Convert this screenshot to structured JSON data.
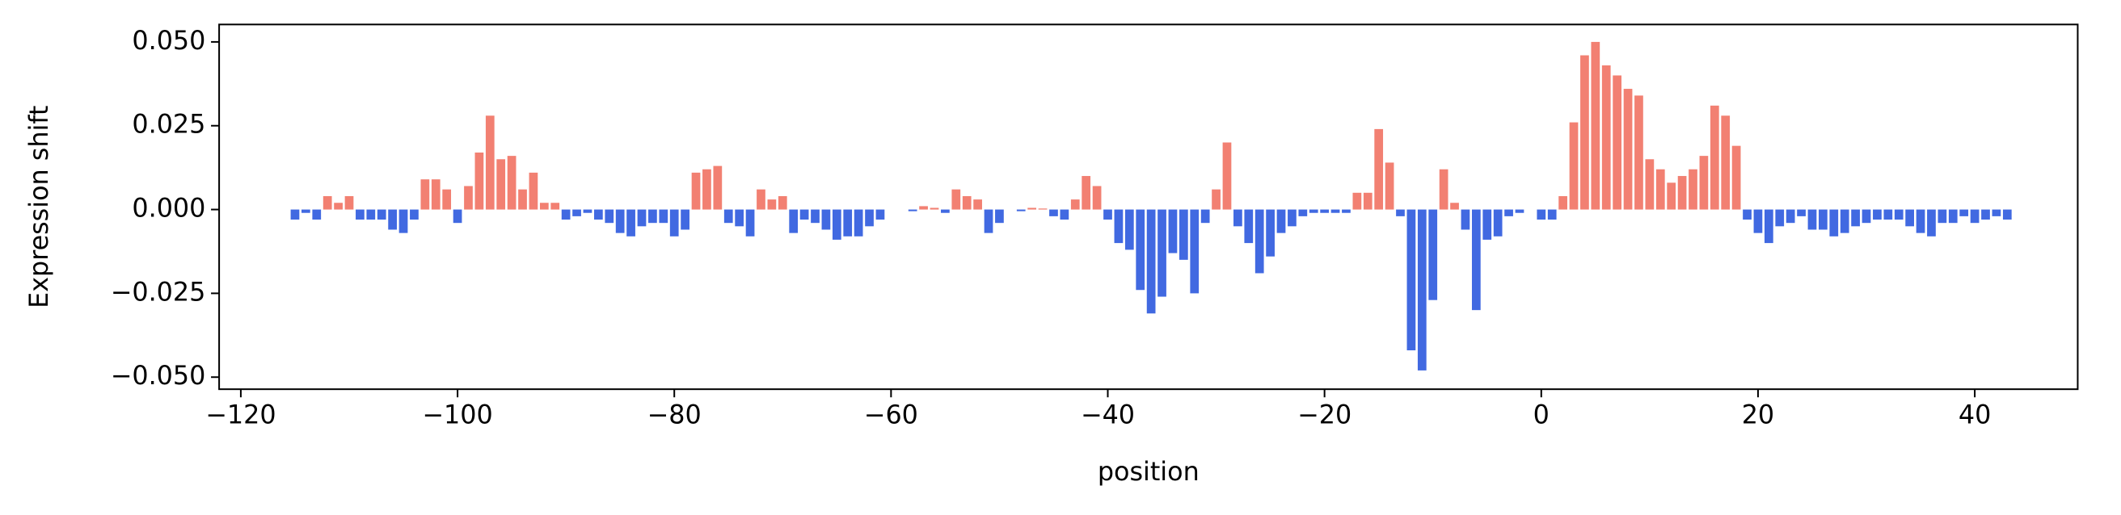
{
  "chart_data": {
    "type": "bar",
    "x_label": "position",
    "y_label": "Expression shift",
    "positive_color": "#f28072",
    "negative_color": "#4169e1",
    "x": [
      -115,
      -114,
      -113,
      -112,
      -111,
      -110,
      -109,
      -108,
      -107,
      -106,
      -105,
      -104,
      -103,
      -102,
      -101,
      -100,
      -99,
      -98,
      -97,
      -96,
      -95,
      -94,
      -93,
      -92,
      -91,
      -90,
      -89,
      -88,
      -87,
      -86,
      -85,
      -84,
      -83,
      -82,
      -81,
      -80,
      -79,
      -78,
      -77,
      -76,
      -75,
      -74,
      -73,
      -72,
      -71,
      -70,
      -69,
      -68,
      -67,
      -66,
      -65,
      -64,
      -63,
      -62,
      -61,
      -60,
      -59,
      -58,
      -57,
      -56,
      -55,
      -54,
      -53,
      -52,
      -51,
      -50,
      -49,
      -48,
      -47,
      -46,
      -45,
      -44,
      -43,
      -42,
      -41,
      -40,
      -39,
      -38,
      -37,
      -36,
      -35,
      -34,
      -33,
      -32,
      -31,
      -30,
      -29,
      -28,
      -27,
      -26,
      -25,
      -24,
      -23,
      -22,
      -21,
      -20,
      -19,
      -18,
      -17,
      -16,
      -15,
      -14,
      -13,
      -12,
      -11,
      -10,
      -9,
      -8,
      -7,
      -6,
      -5,
      -4,
      -3,
      -2,
      -1,
      0,
      1,
      2,
      3,
      4,
      5,
      6,
      7,
      8,
      9,
      10,
      11,
      12,
      13,
      14,
      15,
      16,
      17,
      18,
      19,
      20,
      21,
      22,
      23,
      24,
      25,
      26,
      27,
      28,
      29,
      30,
      31,
      32,
      33,
      34,
      35,
      36,
      37,
      38,
      39,
      40,
      41,
      42,
      43
    ],
    "values": [
      -0.003,
      -0.001,
      -0.003,
      0.004,
      0.002,
      0.004,
      -0.003,
      -0.003,
      -0.003,
      -0.006,
      -0.007,
      -0.003,
      0.009,
      0.009,
      0.006,
      -0.004,
      0.007,
      0.017,
      0.028,
      0.015,
      0.016,
      0.006,
      0.011,
      0.002,
      0.002,
      -0.003,
      -0.002,
      -0.001,
      -0.003,
      -0.004,
      -0.007,
      -0.008,
      -0.005,
      -0.004,
      -0.004,
      -0.008,
      -0.006,
      0.011,
      0.012,
      0.013,
      -0.004,
      -0.005,
      -0.008,
      0.006,
      0.003,
      0.004,
      -0.007,
      -0.003,
      -0.004,
      -0.006,
      -0.009,
      -0.008,
      -0.008,
      -0.005,
      -0.003,
      0,
      0,
      -0.0005,
      0.001,
      0.0005,
      -0.001,
      0.006,
      0.004,
      0.003,
      -0.007,
      -0.004,
      0,
      -0.0005,
      0.0005,
      0.0003,
      -0.002,
      -0.003,
      0.003,
      0.01,
      0.007,
      -0.003,
      -0.01,
      -0.012,
      -0.024,
      -0.031,
      -0.026,
      -0.013,
      -0.015,
      -0.025,
      -0.004,
      0.006,
      0.02,
      -0.005,
      -0.01,
      -0.019,
      -0.014,
      -0.007,
      -0.005,
      -0.002,
      -0.001,
      -0.001,
      -0.001,
      -0.001,
      0.005,
      0.005,
      0.024,
      0.014,
      -0.002,
      -0.042,
      -0.048,
      -0.027,
      0.012,
      0.002,
      -0.006,
      -0.03,
      -0.009,
      -0.008,
      -0.002,
      -0.001,
      0,
      -0.003,
      -0.003,
      0.004,
      0.026,
      0.046,
      0.05,
      0.043,
      0.04,
      0.036,
      0.034,
      0.015,
      0.012,
      0.008,
      0.01,
      0.012,
      0.016,
      0.031,
      0.028,
      0.019,
      -0.003,
      -0.007,
      -0.01,
      -0.005,
      -0.004,
      -0.002,
      -0.006,
      -0.006,
      -0.008,
      -0.007,
      -0.005,
      -0.004,
      -0.003,
      -0.003,
      -0.003,
      -0.005,
      -0.007,
      -0.008,
      -0.004,
      -0.004,
      -0.002,
      -0.004,
      -0.003,
      -0.002,
      -0.003
    ],
    "xlim": [
      -122,
      49.5
    ],
    "ylim": [
      -0.0536,
      0.0552
    ],
    "xticks": [
      {
        "value": -120,
        "label": "−120"
      },
      {
        "value": -100,
        "label": "−100"
      },
      {
        "value": -80,
        "label": "−80"
      },
      {
        "value": -60,
        "label": "−60"
      },
      {
        "value": -40,
        "label": "−40"
      },
      {
        "value": -20,
        "label": "−20"
      },
      0,
      20,
      40
    ],
    "yticks": [
      {
        "value": -0.05,
        "label": "−0.050"
      },
      {
        "value": -0.025,
        "label": "−0.025"
      },
      {
        "value": 0,
        "label": "0.000"
      },
      {
        "value": 0.025,
        "label": "0.025"
      },
      {
        "value": 0.05,
        "label": "0.050"
      }
    ],
    "grid": false
  }
}
